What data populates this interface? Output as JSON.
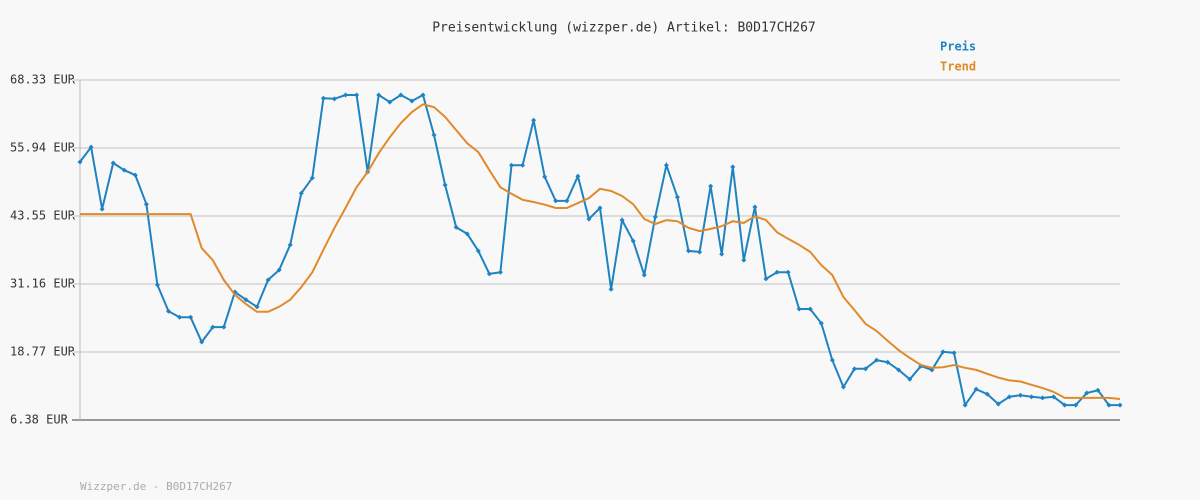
{
  "chart_data": {
    "type": "line",
    "title": "Preisentwicklung (wizzper.de) Artikel: B0D17CH267",
    "footer": "Wizzper.de - B0D17CH267",
    "ylim": [
      6.38,
      68.33
    ],
    "yticks": [
      {
        "value": 6.38,
        "label": "6.38 EUR"
      },
      {
        "value": 18.77,
        "label": "18.77 EUR"
      },
      {
        "value": 31.16,
        "label": "31.16 EUR"
      },
      {
        "value": 43.55,
        "label": "43.55 EUR"
      },
      {
        "value": 55.94,
        "label": "55.94 EUR"
      },
      {
        "value": 68.33,
        "label": "68.33 EUR"
      }
    ],
    "grid": true,
    "legend": "top-right",
    "series": [
      {
        "name": "Preis",
        "color": "#1f83c1",
        "markers": true,
        "values": [
          53.4,
          56.1,
          44.8,
          53.2,
          51.9,
          51.0,
          45.7,
          31.0,
          26.2,
          25.1,
          25.1,
          20.6,
          23.3,
          23.3,
          29.7,
          28.3,
          27.0,
          31.9,
          33.7,
          38.3,
          47.7,
          50.5,
          65.0,
          64.9,
          65.6,
          65.6,
          51.6,
          65.6,
          64.3,
          65.6,
          64.5,
          65.6,
          58.3,
          49.2,
          41.5,
          40.3,
          37.2,
          33.0,
          33.3,
          52.8,
          52.8,
          61.0,
          50.7,
          46.3,
          46.3,
          50.8,
          43.0,
          45.0,
          30.2,
          42.8,
          39.0,
          32.8,
          43.4,
          52.8,
          47.0,
          37.2,
          37.0,
          49.0,
          36.6,
          52.5,
          35.5,
          45.2,
          32.1,
          33.3,
          33.3,
          26.6,
          26.6,
          24.0,
          17.3,
          12.4,
          15.7,
          15.7,
          17.3,
          16.9,
          15.5,
          13.8,
          16.2,
          15.5,
          18.8,
          18.6,
          9.1,
          12.0,
          11.1,
          9.3,
          10.6,
          10.9,
          10.6,
          10.4,
          10.6,
          9.1,
          9.1,
          11.3,
          11.8,
          9.1,
          9.1
        ]
      },
      {
        "name": "Trend",
        "color": "#e08a2a",
        "markers": false,
        "values": [
          43.9,
          43.9,
          43.9,
          43.9,
          43.9,
          43.9,
          43.9,
          43.9,
          43.9,
          43.9,
          43.9,
          37.7,
          35.5,
          31.9,
          29.2,
          27.5,
          26.1,
          26.1,
          27.0,
          28.3,
          30.6,
          33.3,
          37.4,
          41.4,
          45.0,
          48.8,
          51.6,
          55.0,
          57.9,
          60.5,
          62.5,
          63.9,
          63.4,
          61.6,
          59.2,
          56.8,
          55.2,
          51.9,
          48.8,
          47.6,
          46.5,
          46.1,
          45.6,
          45.0,
          45.0,
          45.9,
          46.8,
          48.5,
          48.1,
          47.2,
          45.7,
          43.0,
          42.1,
          42.8,
          42.6,
          41.4,
          40.8,
          41.2,
          41.7,
          42.6,
          42.3,
          43.5,
          42.8,
          40.6,
          39.4,
          38.3,
          37.0,
          34.6,
          32.8,
          28.8,
          26.4,
          23.9,
          22.6,
          20.8,
          19.1,
          17.7,
          16.4,
          15.9,
          16.0,
          16.4,
          15.9,
          15.5,
          14.8,
          14.1,
          13.6,
          13.4,
          12.8,
          12.2,
          11.5,
          10.4,
          10.4,
          10.4,
          10.4,
          10.4,
          10.2
        ]
      }
    ]
  }
}
